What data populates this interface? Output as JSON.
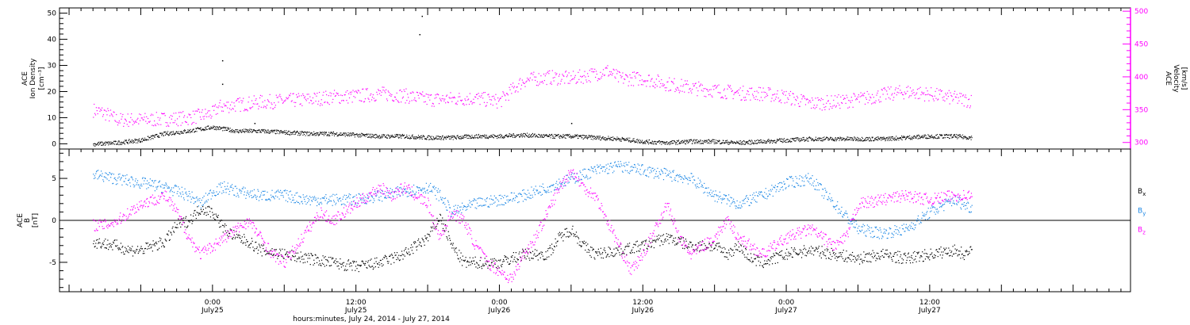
{
  "chart_data": [
    {
      "type": "scatter",
      "panel": "top",
      "ylabel_left": [
        "ACE",
        "Ion Density",
        "[cm⁻³]"
      ],
      "ylabel_right": [
        "ACE",
        "Velocity",
        "[km/s]"
      ],
      "ylim_left": [
        -2,
        52
      ],
      "yticks_left": [
        0,
        10,
        20,
        30,
        40,
        50
      ],
      "ylim_right": [
        290,
        505
      ],
      "yticks_right": [
        300,
        350,
        400,
        450,
        500
      ],
      "grid": false,
      "colors": {
        "density": "#000000",
        "velocity": "#ff00ff"
      },
      "density": [
        [
          -10,
          0
        ],
        [
          -8,
          0.5
        ],
        [
          -6,
          1.5
        ],
        [
          -4,
          4
        ],
        [
          -2,
          5
        ],
        [
          0,
          6.5
        ],
        [
          2,
          5
        ],
        [
          4,
          5
        ],
        [
          6,
          4.5
        ],
        [
          8,
          4
        ],
        [
          10,
          4
        ],
        [
          12,
          3.5
        ],
        [
          14,
          3
        ],
        [
          16,
          3
        ],
        [
          18,
          2.5
        ],
        [
          20,
          2.5
        ],
        [
          22,
          3
        ],
        [
          24,
          3
        ],
        [
          26,
          3.5
        ],
        [
          28,
          3
        ],
        [
          30,
          3
        ],
        [
          32,
          2.5
        ],
        [
          34,
          2
        ],
        [
          36,
          1
        ],
        [
          38,
          0.5
        ],
        [
          40,
          1
        ],
        [
          42,
          1
        ],
        [
          44,
          0.5
        ],
        [
          46,
          1
        ],
        [
          48,
          1.5
        ],
        [
          50,
          2
        ],
        [
          52,
          2
        ],
        [
          54,
          2
        ],
        [
          56,
          2
        ],
        [
          58,
          2.5
        ],
        [
          60,
          3
        ],
        [
          62,
          3
        ],
        [
          63.5,
          2.5
        ]
      ],
      "density_spikes": [
        [
          0.8,
          32
        ],
        [
          0.8,
          23
        ],
        [
          17.5,
          49
        ],
        [
          17.3,
          42
        ],
        [
          3.5,
          8
        ],
        [
          30,
          8
        ]
      ],
      "velocity": [
        [
          -10,
          350
        ],
        [
          -9,
          345
        ],
        [
          -8,
          335
        ],
        [
          -6,
          335
        ],
        [
          -4,
          336
        ],
        [
          -2,
          338
        ],
        [
          0,
          345
        ],
        [
          0.5,
          355
        ],
        [
          2,
          358
        ],
        [
          4,
          362
        ],
        [
          6,
          364
        ],
        [
          8,
          366
        ],
        [
          10,
          370
        ],
        [
          12,
          371
        ],
        [
          14,
          375
        ],
        [
          16,
          372
        ],
        [
          18,
          366
        ],
        [
          20,
          367
        ],
        [
          22,
          368
        ],
        [
          24,
          363
        ],
        [
          25,
          380
        ],
        [
          26,
          395
        ],
        [
          28,
          400
        ],
        [
          30,
          398
        ],
        [
          32,
          405
        ],
        [
          33,
          410
        ],
        [
          34,
          398
        ],
        [
          36,
          398
        ],
        [
          38,
          390
        ],
        [
          40,
          384
        ],
        [
          42,
          380
        ],
        [
          44,
          376
        ],
        [
          46,
          375
        ],
        [
          48,
          370
        ],
        [
          50,
          360
        ],
        [
          52,
          362
        ],
        [
          54,
          366
        ],
        [
          56,
          373
        ],
        [
          58,
          378
        ],
        [
          60,
          374
        ],
        [
          62,
          368
        ],
        [
          63.5,
          364
        ]
      ]
    },
    {
      "type": "line",
      "panel": "bottom",
      "ylabel": [
        "ACE",
        "B",
        "[nT]"
      ],
      "ylim": [
        -8.5,
        8.5
      ],
      "yticks": [
        -5,
        0,
        5
      ],
      "zero_line": true,
      "grid": false,
      "series": [
        {
          "name": "Bx",
          "color": "#000000",
          "values": [
            [
              -10,
              -2.5
            ],
            [
              -8,
              -3
            ],
            [
              -7,
              -3.5
            ],
            [
              -6,
              -3.5
            ],
            [
              -5,
              -3
            ],
            [
              -4,
              -2.5
            ],
            [
              -3,
              -0.5
            ],
            [
              -2,
              0
            ],
            [
              -1,
              1.5
            ],
            [
              0,
              1
            ],
            [
              1,
              -1
            ],
            [
              2,
              -2
            ],
            [
              3,
              -2.5
            ],
            [
              4,
              -3.5
            ],
            [
              6,
              -4
            ],
            [
              8,
              -4.5
            ],
            [
              10,
              -5
            ],
            [
              12,
              -5.5
            ],
            [
              14,
              -5
            ],
            [
              16,
              -4
            ],
            [
              17,
              -3
            ],
            [
              18,
              -2
            ],
            [
              19,
              0.5
            ],
            [
              20,
              -3
            ],
            [
              21,
              -5
            ],
            [
              22,
              -5
            ],
            [
              24,
              -5
            ],
            [
              26,
              -4
            ],
            [
              28,
              -4
            ],
            [
              29,
              -2
            ],
            [
              30,
              -1
            ],
            [
              31,
              -3
            ],
            [
              32,
              -4
            ],
            [
              34,
              -3.5
            ],
            [
              36,
              -3
            ],
            [
              38,
              -2
            ],
            [
              40,
              -3
            ],
            [
              42,
              -3
            ],
            [
              43,
              -4
            ],
            [
              44,
              -3
            ],
            [
              45,
              -4.5
            ],
            [
              46,
              -5
            ],
            [
              48,
              -4
            ],
            [
              50,
              -3.5
            ],
            [
              52,
              -4
            ],
            [
              54,
              -4.5
            ],
            [
              56,
              -4
            ],
            [
              58,
              -4.5
            ],
            [
              60,
              -4
            ],
            [
              62,
              -3.5
            ],
            [
              63,
              -4
            ],
            [
              63.5,
              -3.5
            ]
          ]
        },
        {
          "name": "By",
          "color": "#1e88e5",
          "values": [
            [
              -10,
              5.5
            ],
            [
              -8,
              5
            ],
            [
              -6,
              4.5
            ],
            [
              -4,
              4
            ],
            [
              -2,
              3
            ],
            [
              -1,
              2
            ],
            [
              0,
              3.5
            ],
            [
              1,
              4
            ],
            [
              2,
              3.5
            ],
            [
              4,
              3
            ],
            [
              6,
              3
            ],
            [
              8,
              2.5
            ],
            [
              10,
              2.5
            ],
            [
              12,
              2.5
            ],
            [
              14,
              3
            ],
            [
              16,
              3.5
            ],
            [
              18,
              4
            ],
            [
              19,
              3
            ],
            [
              20,
              1
            ],
            [
              22,
              2
            ],
            [
              24,
              2.5
            ],
            [
              26,
              3
            ],
            [
              28,
              4
            ],
            [
              30,
              5
            ],
            [
              32,
              6
            ],
            [
              34,
              6.5
            ],
            [
              36,
              6
            ],
            [
              38,
              5.5
            ],
            [
              40,
              5
            ],
            [
              42,
              3
            ],
            [
              44,
              2
            ],
            [
              46,
              3
            ],
            [
              48,
              4.5
            ],
            [
              50,
              5
            ],
            [
              52,
              2
            ],
            [
              54,
              -1
            ],
            [
              56,
              -1.5
            ],
            [
              58,
              -1
            ],
            [
              60,
              1
            ],
            [
              62,
              2.5
            ],
            [
              63.5,
              1.5
            ]
          ]
        },
        {
          "name": "Bz",
          "color": "#ff00ff",
          "values": [
            [
              -10,
              -0.5
            ],
            [
              -9,
              -0.5
            ],
            [
              -8,
              0
            ],
            [
              -7,
              1
            ],
            [
              -6,
              2
            ],
            [
              -5,
              2.5
            ],
            [
              -4,
              3
            ],
            [
              -3,
              1
            ],
            [
              -2,
              -2
            ],
            [
              -1,
              -4
            ],
            [
              0,
              -3
            ],
            [
              1,
              -2
            ],
            [
              2,
              -1
            ],
            [
              3,
              0
            ],
            [
              4,
              -2
            ],
            [
              5,
              -4
            ],
            [
              6,
              -5
            ],
            [
              7,
              -3
            ],
            [
              8,
              -1
            ],
            [
              9,
              1
            ],
            [
              10,
              0
            ],
            [
              11,
              1
            ],
            [
              12,
              2
            ],
            [
              13,
              3
            ],
            [
              14,
              4
            ],
            [
              15,
              3
            ],
            [
              16,
              4
            ],
            [
              18,
              2
            ],
            [
              19,
              -2
            ],
            [
              20,
              1
            ],
            [
              21,
              0
            ],
            [
              22,
              -3
            ],
            [
              23,
              -5
            ],
            [
              24,
              -6
            ],
            [
              25,
              -7
            ],
            [
              26,
              -4
            ],
            [
              27,
              -2
            ],
            [
              28,
              1
            ],
            [
              29,
              4
            ],
            [
              30,
              6
            ],
            [
              31,
              4
            ],
            [
              32,
              3
            ],
            [
              33,
              0
            ],
            [
              34,
              -3
            ],
            [
              35,
              -6
            ],
            [
              36,
              -4
            ],
            [
              37,
              -1
            ],
            [
              38,
              2
            ],
            [
              39,
              -2
            ],
            [
              40,
              -4
            ],
            [
              41,
              -3
            ],
            [
              42,
              -2
            ],
            [
              43,
              0
            ],
            [
              44,
              -2
            ],
            [
              45,
              -3
            ],
            [
              46,
              -4
            ],
            [
              48,
              -2
            ],
            [
              50,
              -1
            ],
            [
              52,
              -3
            ],
            [
              53,
              -2
            ],
            [
              54,
              2
            ],
            [
              56,
              2.5
            ],
            [
              58,
              3
            ],
            [
              60,
              2.5
            ],
            [
              62,
              3
            ],
            [
              63.5,
              3
            ]
          ]
        }
      ],
      "legend": {
        "position": "right",
        "entries": [
          {
            "label": "B",
            "sub": "x",
            "color": "#000000"
          },
          {
            "label": "B",
            "sub": "y",
            "color": "#1e88e5"
          },
          {
            "label": "B",
            "sub": "z",
            "color": "#ff00ff"
          }
        ]
      }
    }
  ],
  "x_axis": {
    "xlim": [
      -12.8,
      76.8
    ],
    "title": "hours:minutes, July 24, 2014 - July 27, 2014",
    "ticks": [
      {
        "x": 0,
        "time": "0:00",
        "date": "July25"
      },
      {
        "x": 12,
        "time": "12:00",
        "date": "July25"
      },
      {
        "x": 24,
        "time": "0:00",
        "date": "July26"
      },
      {
        "x": 36,
        "time": "12:00",
        "date": "July26"
      },
      {
        "x": 48,
        "time": "0:00",
        "date": "July27"
      },
      {
        "x": 60,
        "time": "12:00",
        "date": "July27"
      }
    ],
    "minor_step": 1
  }
}
